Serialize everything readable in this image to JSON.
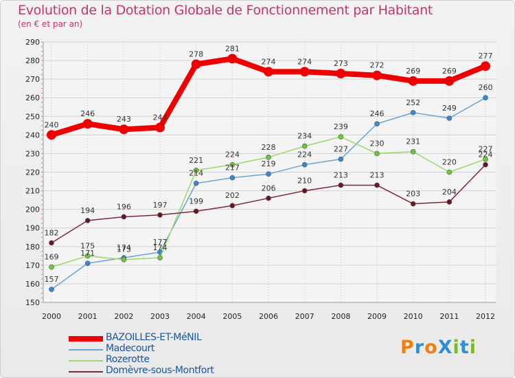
{
  "title": "Evolution de la Dotation Globale de Fonctionnement par Habitant",
  "subtitle": "(en € et par an)",
  "logo": {
    "text": "ProXiti",
    "letters": [
      "P",
      "r",
      "o",
      "X",
      "i",
      "t",
      "i"
    ],
    "colors": [
      "#f07f10",
      "#2f8fd0",
      "#f07f10",
      "#2f8fd0",
      "#7cb928",
      "#2f8fd0",
      "#7cb928"
    ]
  },
  "chart_data": {
    "type": "line",
    "title": "Evolution de la Dotation Globale de Fonctionnement par Habitant",
    "subtitle": "(en € et par an)",
    "xlabel": "",
    "ylabel": "",
    "ylim": [
      150,
      290
    ],
    "yticks": [
      150,
      160,
      170,
      180,
      190,
      200,
      210,
      220,
      230,
      240,
      250,
      260,
      270,
      280,
      290
    ],
    "grid": true,
    "legend_position": "bottom-left",
    "categories": [
      "2000",
      "2001",
      "2002",
      "2003",
      "2004",
      "2005",
      "2006",
      "2007",
      "2008",
      "2009",
      "2010",
      "2011",
      "2012"
    ],
    "series": [
      {
        "name": "BAZOILLES-ET-MéNIL",
        "color": "#ee0000",
        "marker": "#ee0000",
        "values": [
          240,
          246,
          243,
          244,
          278,
          281,
          274,
          274,
          273,
          272,
          269,
          269,
          277
        ]
      },
      {
        "name": "Madecourt",
        "color": "#6aa3d5",
        "marker": "#3a86cf",
        "values": [
          157,
          171,
          174,
          177,
          214,
          217,
          219,
          224,
          227,
          246,
          252,
          249,
          260
        ]
      },
      {
        "name": "Rozerotte",
        "color": "#9ad86a",
        "marker": "#6cc83a",
        "values": [
          169,
          175,
          173,
          174,
          221,
          224,
          228,
          234,
          239,
          230,
          231,
          220,
          227
        ]
      },
      {
        "name": "Domèvre-sous-Montfort",
        "color": "#7a2a36",
        "marker": "#6a1622",
        "values": [
          182,
          194,
          196,
          197,
          199,
          202,
          206,
          210,
          213,
          213,
          203,
          204,
          224
        ]
      }
    ]
  }
}
